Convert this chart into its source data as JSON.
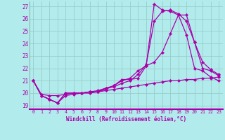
{
  "xlabel": "Windchill (Refroidissement éolien,°C)",
  "background_color": "#b2ebeb",
  "grid_color": "#99cccc",
  "line_color": "#aa00aa",
  "xlim": [
    -0.5,
    23.5
  ],
  "ylim": [
    18.7,
    27.4
  ],
  "yticks": [
    19,
    20,
    21,
    22,
    23,
    24,
    25,
    26,
    27
  ],
  "xticks": [
    0,
    1,
    2,
    3,
    4,
    5,
    6,
    7,
    8,
    9,
    10,
    11,
    12,
    13,
    14,
    15,
    16,
    17,
    18,
    19,
    20,
    21,
    22,
    23
  ],
  "lines": [
    {
      "x": [
        0,
        1,
        2,
        3,
        4,
        5,
        6,
        7,
        8,
        9,
        10,
        11,
        12,
        13,
        14,
        15,
        16,
        17,
        18,
        19,
        20,
        21,
        22,
        23
      ],
      "y": [
        21.0,
        19.8,
        19.5,
        19.2,
        20.0,
        20.0,
        20.0,
        20.1,
        20.1,
        20.3,
        20.6,
        21.1,
        21.1,
        21.2,
        22.2,
        27.2,
        26.7,
        26.6,
        26.3,
        24.7,
        22.0,
        21.8,
        21.3,
        21.0
      ]
    },
    {
      "x": [
        0,
        1,
        2,
        3,
        4,
        5,
        6,
        7,
        8,
        9,
        10,
        11,
        12,
        13,
        14,
        15,
        16,
        17,
        18,
        19,
        20,
        21,
        22,
        23
      ],
      "y": [
        21.0,
        19.8,
        19.5,
        19.2,
        19.8,
        19.9,
        20.0,
        20.0,
        20.1,
        20.4,
        20.5,
        20.8,
        21.0,
        21.5,
        22.3,
        25.8,
        26.6,
        26.7,
        26.4,
        25.8,
        24.1,
        22.0,
        21.8,
        21.4
      ]
    },
    {
      "x": [
        0,
        1,
        2,
        3,
        4,
        5,
        6,
        7,
        8,
        9,
        10,
        11,
        12,
        13,
        14,
        15,
        16,
        17,
        18,
        19,
        20,
        21,
        22,
        23
      ],
      "y": [
        21.0,
        19.8,
        19.5,
        19.2,
        20.0,
        20.0,
        20.0,
        20.1,
        20.2,
        20.4,
        20.6,
        21.0,
        21.2,
        21.8,
        22.2,
        22.5,
        23.3,
        24.8,
        26.3,
        26.3,
        24.1,
        22.5,
        21.9,
        21.5
      ]
    },
    {
      "x": [
        0,
        1,
        2,
        3,
        4,
        5,
        6,
        7,
        8,
        9,
        10,
        11,
        12,
        13,
        14,
        15,
        16,
        17,
        18,
        19,
        20,
        21,
        22,
        23
      ],
      "y": [
        21.0,
        19.9,
        19.8,
        19.8,
        19.9,
        20.0,
        20.0,
        20.1,
        20.1,
        20.2,
        20.3,
        20.4,
        20.5,
        20.6,
        20.7,
        20.8,
        20.9,
        21.0,
        21.0,
        21.1,
        21.1,
        21.2,
        21.2,
        21.3
      ]
    }
  ]
}
